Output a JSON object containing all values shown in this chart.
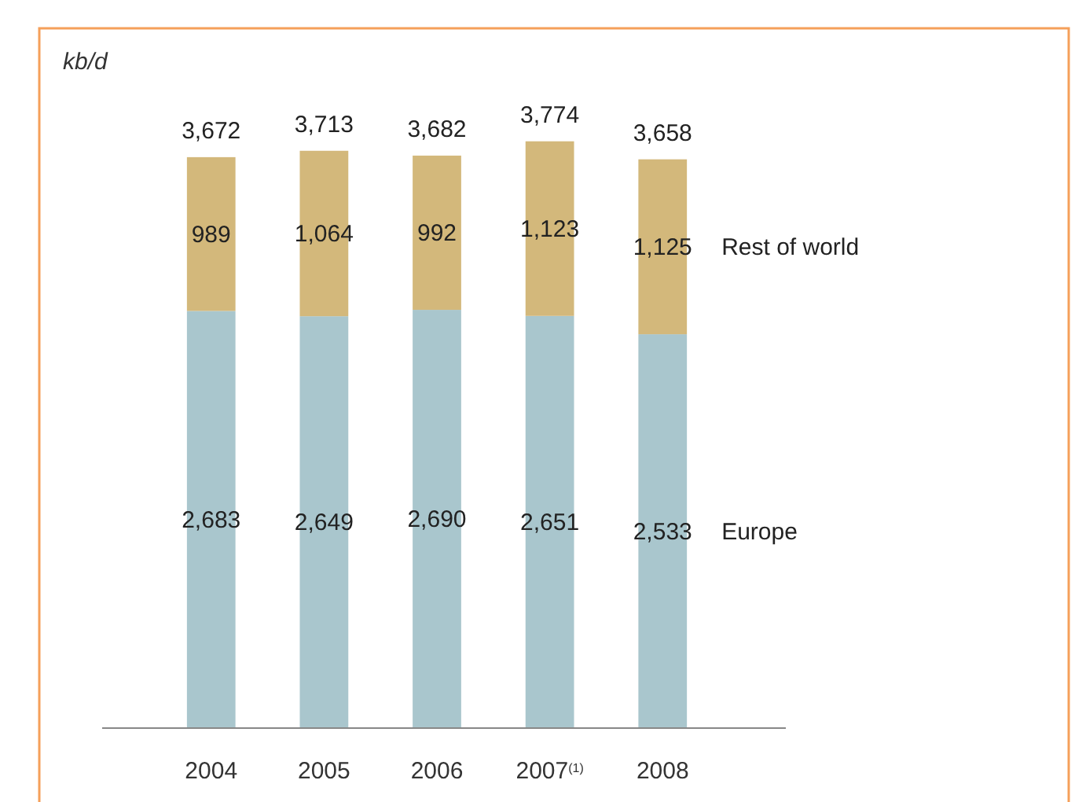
{
  "chart_data": {
    "type": "bar",
    "stacked": true,
    "ylabel": "kb/d",
    "categories": [
      "2004",
      "2005",
      "2006",
      "2007$^{(1)}$",
      "2008"
    ],
    "series": [
      {
        "name": "Europe",
        "color": "#a9c6cd",
        "values": [
          2683,
          2649,
          2690,
          2651,
          2533
        ],
        "value_labels": [
          "2,683",
          "2,649",
          "2,690",
          "2,651",
          "2,533"
        ]
      },
      {
        "name": "Rest of world",
        "color": "#d3b87b",
        "values": [
          989,
          1064,
          992,
          1123,
          1125
        ],
        "value_labels": [
          "989",
          "1,064",
          "992",
          "1,123",
          "1,125"
        ]
      }
    ],
    "totals": [
      "3,672",
      "3,713",
      "3,682",
      "3,774",
      "3,658"
    ]
  }
}
